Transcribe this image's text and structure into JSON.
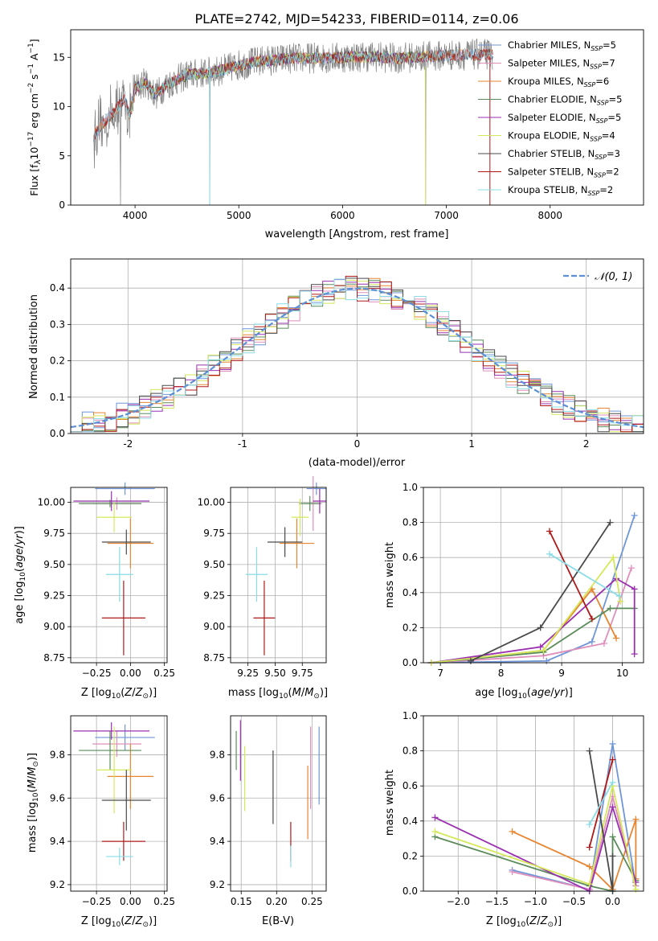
{
  "chart_data": [
    {
      "type": "line",
      "title": "PLATE=2742, MJD=54233, FIBERID=0114, z=0.06",
      "xlabel": "wavelength [Angstrom, rest frame]",
      "ylabel": "Flux [f_λ 10^-17 erg cm^-2 s^-1 A^-1]",
      "xlim": [
        3380,
        8900
      ],
      "ylim": [
        0,
        17.8
      ],
      "xticks": [
        4000,
        5000,
        6000,
        7000,
        8000
      ],
      "yticks": [
        0,
        5,
        10,
        15
      ],
      "legend": "top-right",
      "series": [
        {
          "name": "Chabrier MILES, N_SSP=5",
          "color": "#6f96d8",
          "range": [
            3600,
            7450
          ]
        },
        {
          "name": "Salpeter MILES, N_SSP=7",
          "color": "#e08fbc",
          "range": [
            3600,
            7450
          ]
        },
        {
          "name": "Kroupa MILES, N_SSP=6",
          "color": "#e88530",
          "range": [
            3600,
            7450
          ]
        },
        {
          "name": "Chabrier ELODIE, N_SSP=5",
          "color": "#5b8b5b",
          "range": [
            3900,
            6800
          ]
        },
        {
          "name": "Salpeter ELODIE, N_SSP=5",
          "color": "#9a30b0",
          "range": [
            3900,
            6800
          ]
        },
        {
          "name": "Kroupa ELODIE, N_SSP=4",
          "color": "#d4e85a",
          "range": [
            3900,
            6800
          ]
        },
        {
          "name": "Chabrier STELIB, N_SSP=3",
          "color": "#4a4a4a",
          "range": [
            3600,
            7450
          ]
        },
        {
          "name": "Salpeter STELIB, N_SSP=2",
          "color": "#b01818",
          "range": [
            3600,
            7450
          ]
        },
        {
          "name": "Kroupa STELIB, N_SSP=2",
          "color": "#8adce6",
          "range": [
            3600,
            7450
          ]
        }
      ],
      "continuum": [
        [
          3600,
          7.0
        ],
        [
          3700,
          8.3
        ],
        [
          3800,
          9.5
        ],
        [
          3900,
          10.8
        ],
        [
          3950,
          9.0
        ],
        [
          4000,
          11.8
        ],
        [
          4100,
          12.5
        ],
        [
          4200,
          11.2
        ],
        [
          4300,
          12.2
        ],
        [
          4500,
          13.2
        ],
        [
          4800,
          13.6
        ],
        [
          5000,
          14.2
        ],
        [
          5200,
          14.6
        ],
        [
          5500,
          14.9
        ],
        [
          6000,
          15.0
        ],
        [
          6300,
          15.1
        ],
        [
          6500,
          14.9
        ],
        [
          7000,
          15.2
        ],
        [
          7400,
          15.3
        ],
        [
          7800,
          15.3
        ],
        [
          8300,
          15.0
        ],
        [
          8800,
          14.8
        ]
      ]
    },
    {
      "type": "line",
      "xlabel": "(data-model)/error",
      "ylabel": "Normed distribution",
      "xlim": [
        -2.5,
        2.5
      ],
      "ylim": [
        0,
        0.48
      ],
      "xticks": [
        -2,
        -1,
        0,
        1,
        2
      ],
      "yticks": [
        0.0,
        0.1,
        0.2,
        0.3,
        0.4
      ],
      "legend": "top-right",
      "gaussian_label": "𝒩(0, 1)",
      "bin_width": 0.1
    },
    {
      "type": "scatter",
      "xlabel": "Z [log10(Z/Z⊙)]",
      "ylabel": "age  [log10(age/yr)]",
      "xlim": [
        -0.44,
        0.27
      ],
      "ylim": [
        8.71,
        10.12
      ],
      "xticks": [
        -0.25,
        0.0,
        0.25
      ],
      "xtick_labels": [
        "−0.25",
        "0.00",
        "0.25"
      ],
      "yticks": [
        8.75,
        9.0,
        9.25,
        9.5,
        9.75,
        10.0
      ],
      "points": [
        {
          "color": "#6f96d8",
          "x": -0.04,
          "xerr": 0.22,
          "y": 10.11,
          "yerr": 0.05
        },
        {
          "color": "#e08fbc",
          "x": -0.1,
          "xerr": 0.18,
          "y": 9.99,
          "yerr": 0.05
        },
        {
          "color": "#e88530",
          "x": 0.0,
          "xerr": 0.17,
          "y": 9.67,
          "yerr": 0.2
        },
        {
          "color": "#5b8b5b",
          "x": -0.15,
          "xerr": 0.23,
          "y": 9.99,
          "yerr": 0.03
        },
        {
          "color": "#9a30b0",
          "x": -0.14,
          "xerr": 0.28,
          "y": 10.01,
          "yerr": 0.08
        },
        {
          "color": "#d4e85a",
          "x": -0.12,
          "xerr": 0.13,
          "y": 9.88,
          "yerr": 0.12
        },
        {
          "color": "#4a4a4a",
          "x": -0.03,
          "xerr": 0.18,
          "y": 9.68,
          "yerr": 0.1
        },
        {
          "color": "#b01818",
          "x": -0.05,
          "xerr": 0.16,
          "y": 9.07,
          "yerr": 0.3
        },
        {
          "color": "#8adce6",
          "x": -0.08,
          "xerr": 0.1,
          "y": 9.42,
          "yerr": 0.22
        }
      ]
    },
    {
      "type": "scatter",
      "xlabel": "mass [log10(M/M⊙)]",
      "xlim": [
        9.09,
        9.97
      ],
      "ylim": [
        8.71,
        10.12
      ],
      "xticks": [
        9.25,
        9.5,
        9.75
      ],
      "yticks": [
        8.75,
        9.0,
        9.25,
        9.5,
        9.75,
        10.0
      ],
      "points": [
        {
          "color": "#6f96d8",
          "x": 9.88,
          "xerr": 0.09,
          "y": 10.11,
          "yerr": 0.05
        },
        {
          "color": "#e08fbc",
          "x": 9.85,
          "xerr": 0.08,
          "y": 9.99,
          "yerr": 0.22
        },
        {
          "color": "#e88530",
          "x": 9.7,
          "xerr": 0.16,
          "y": 9.67,
          "yerr": 0.2
        },
        {
          "color": "#5b8b5b",
          "x": 9.82,
          "xerr": 0.1,
          "y": 9.99,
          "yerr": 0.06
        },
        {
          "color": "#9a30b0",
          "x": 9.91,
          "xerr": 0.06,
          "y": 10.01,
          "yerr": 0.1
        },
        {
          "color": "#d4e85a",
          "x": 9.73,
          "xerr": 0.08,
          "y": 9.88,
          "yerr": 0.15
        },
        {
          "color": "#4a4a4a",
          "x": 9.59,
          "xerr": 0.16,
          "y": 9.68,
          "yerr": 0.12
        },
        {
          "color": "#b01818",
          "x": 9.4,
          "xerr": 0.1,
          "y": 9.07,
          "yerr": 0.3
        },
        {
          "color": "#8adce6",
          "x": 9.33,
          "xerr": 0.1,
          "y": 9.42,
          "yerr": 0.22
        }
      ]
    },
    {
      "type": "line",
      "xlabel": "age  [log10(age/yr)]",
      "ylabel": "mass weight",
      "xlim": [
        6.72,
        10.35
      ],
      "ylim": [
        0.0,
        1.0
      ],
      "xticks": [
        7,
        8,
        9,
        10
      ],
      "yticks": [
        0.0,
        0.2,
        0.4,
        0.6,
        0.8,
        1.0
      ],
      "series": [
        {
          "color": "#6f96d8",
          "points": [
            [
              6.85,
              0.0
            ],
            [
              8.75,
              0.01
            ],
            [
              9.5,
              0.12
            ],
            [
              10.2,
              0.84
            ]
          ]
        },
        {
          "color": "#e08fbc",
          "points": [
            [
              6.85,
              0.0
            ],
            [
              8.7,
              0.04
            ],
            [
              9.7,
              0.11
            ],
            [
              10.15,
              0.54
            ]
          ]
        },
        {
          "color": "#e88530",
          "points": [
            [
              6.85,
              0.0
            ],
            [
              8.7,
              0.07
            ],
            [
              9.5,
              0.42
            ],
            [
              9.9,
              0.14
            ]
          ]
        },
        {
          "color": "#5b8b5b",
          "points": [
            [
              6.85,
              0.0
            ],
            [
              8.7,
              0.06
            ],
            [
              9.8,
              0.31
            ],
            [
              10.2,
              0.31
            ]
          ]
        },
        {
          "color": "#9a30b0",
          "points": [
            [
              6.85,
              0.0
            ],
            [
              8.65,
              0.09
            ],
            [
              9.9,
              0.48
            ],
            [
              10.2,
              0.42
            ],
            [
              10.2,
              0.05
            ]
          ]
        },
        {
          "color": "#d4e85a",
          "points": [
            [
              6.85,
              0.0
            ],
            [
              8.7,
              0.07
            ],
            [
              9.85,
              0.6
            ],
            [
              9.97,
              0.35
            ]
          ]
        },
        {
          "color": "#4a4a4a",
          "points": [
            [
              7.5,
              0.01
            ],
            [
              8.65,
              0.2
            ],
            [
              9.8,
              0.8
            ]
          ]
        },
        {
          "color": "#b01818",
          "points": [
            [
              8.8,
              0.75
            ],
            [
              9.5,
              0.25
            ]
          ]
        },
        {
          "color": "#8adce6",
          "points": [
            [
              8.8,
              0.62
            ],
            [
              9.95,
              0.38
            ]
          ]
        }
      ]
    },
    {
      "type": "scatter",
      "xlabel": "Z [log10(Z/Z⊙)]",
      "ylabel": "mass [log10(M/M⊙)]",
      "xlim": [
        -0.44,
        0.27
      ],
      "ylim": [
        9.17,
        9.98
      ],
      "xticks": [
        -0.25,
        0.0,
        0.25
      ],
      "xtick_labels": [
        "−0.25",
        "0.00",
        "0.25"
      ],
      "yticks": [
        9.2,
        9.4,
        9.6,
        9.8
      ],
      "points": [
        {
          "color": "#6f96d8",
          "x": -0.04,
          "xerr": 0.22,
          "y": 9.88,
          "yerr": 0.06
        },
        {
          "color": "#e08fbc",
          "x": -0.1,
          "xerr": 0.18,
          "y": 9.85,
          "yerr": 0.06
        },
        {
          "color": "#e88530",
          "x": 0.0,
          "xerr": 0.17,
          "y": 9.7,
          "yerr": 0.15
        },
        {
          "color": "#5b8b5b",
          "x": -0.15,
          "xerr": 0.23,
          "y": 9.82,
          "yerr": 0.09
        },
        {
          "color": "#9a30b0",
          "x": -0.14,
          "xerr": 0.28,
          "y": 9.91,
          "yerr": 0.04
        },
        {
          "color": "#d4e85a",
          "x": -0.12,
          "xerr": 0.13,
          "y": 9.73,
          "yerr": 0.2
        },
        {
          "color": "#4a4a4a",
          "x": -0.03,
          "xerr": 0.18,
          "y": 9.59,
          "yerr": 0.14
        },
        {
          "color": "#b01818",
          "x": -0.05,
          "xerr": 0.16,
          "y": 9.4,
          "yerr": 0.09
        },
        {
          "color": "#8adce6",
          "x": -0.08,
          "xerr": 0.1,
          "y": 9.33,
          "yerr": 0.04
        }
      ]
    },
    {
      "type": "scatter",
      "xlabel": "E(B-V)",
      "xlim": [
        0.135,
        0.27
      ],
      "ylim": [
        9.17,
        9.98
      ],
      "xticks": [
        0.15,
        0.2,
        0.25
      ],
      "yticks": [
        9.2,
        9.4,
        9.6,
        9.8
      ],
      "points": [
        {
          "color": "#6f96d8",
          "x": 0.26,
          "y": 9.75,
          "yerr": 0.18
        },
        {
          "color": "#e08fbc",
          "x": 0.248,
          "y": 9.74,
          "yerr": 0.19
        },
        {
          "color": "#e88530",
          "x": 0.244,
          "y": 9.58,
          "yerr": 0.17
        },
        {
          "color": "#5b8b5b",
          "x": 0.143,
          "y": 9.82,
          "yerr": 0.09
        },
        {
          "color": "#9a30b0",
          "x": 0.149,
          "y": 9.82,
          "yerr": 0.14
        },
        {
          "color": "#d4e85a",
          "x": 0.155,
          "y": 9.69,
          "yerr": 0.15
        },
        {
          "color": "#4a4a4a",
          "x": 0.195,
          "y": 9.65,
          "yerr": 0.17
        },
        {
          "color": "#b01818",
          "x": 0.22,
          "y": 9.4,
          "yerr": 0.09
        },
        {
          "color": "#8adce6",
          "x": 0.22,
          "y": 9.33,
          "yerr": 0.05
        }
      ]
    },
    {
      "type": "line",
      "xlabel": "Z [log10(Z/Z⊙)]",
      "ylabel": "mass weight",
      "xlim": [
        -2.45,
        0.4
      ],
      "ylim": [
        0.0,
        1.0
      ],
      "xticks": [
        -2.0,
        -1.5,
        -1.0,
        -0.5,
        0.0
      ],
      "xtick_labels": [
        "−2.0",
        "−1.5",
        "−1.0",
        "−0.5",
        "0.0"
      ],
      "yticks": [
        0.0,
        0.2,
        0.4,
        0.6,
        0.8,
        1.0
      ],
      "series": [
        {
          "color": "#6f96d8",
          "points": [
            [
              -1.3,
              0.12
            ],
            [
              -0.3,
              0.01
            ],
            [
              0.0,
              0.84
            ],
            [
              0.3,
              0.03
            ]
          ]
        },
        {
          "color": "#e08fbc",
          "points": [
            [
              -1.3,
              0.11
            ],
            [
              -0.3,
              0.01
            ],
            [
              0.0,
              0.54
            ],
            [
              0.3,
              0.03
            ]
          ]
        },
        {
          "color": "#e88530",
          "points": [
            [
              -1.3,
              0.34
            ],
            [
              -0.3,
              0.14
            ],
            [
              0.0,
              0.01
            ],
            [
              0.3,
              0.41
            ],
            [
              0.3,
              0.07
            ]
          ]
        },
        {
          "color": "#5b8b5b",
          "points": [
            [
              -2.3,
              0.31
            ],
            [
              -0.3,
              0.03
            ],
            [
              0.0,
              0.0
            ],
            [
              0.0,
              0.31
            ],
            [
              0.3,
              0.06
            ]
          ]
        },
        {
          "color": "#9a30b0",
          "points": [
            [
              -2.3,
              0.42
            ],
            [
              -0.3,
              0.0
            ],
            [
              0.0,
              0.48
            ],
            [
              0.3,
              0.05
            ]
          ]
        },
        {
          "color": "#d4e85a",
          "points": [
            [
              -2.3,
              0.34
            ],
            [
              -0.3,
              0.04
            ],
            [
              0.0,
              0.6
            ],
            [
              0.3,
              0.01
            ]
          ]
        },
        {
          "color": "#4a4a4a",
          "points": [
            [
              -0.3,
              0.8
            ],
            [
              0.0,
              0.0
            ],
            [
              0.0,
              0.2
            ]
          ]
        },
        {
          "color": "#b01818",
          "points": [
            [
              -0.3,
              0.25
            ],
            [
              0.0,
              0.75
            ]
          ]
        },
        {
          "color": "#8adce6",
          "points": [
            [
              -0.3,
              0.38
            ],
            [
              0.0,
              0.62
            ]
          ]
        }
      ]
    }
  ]
}
